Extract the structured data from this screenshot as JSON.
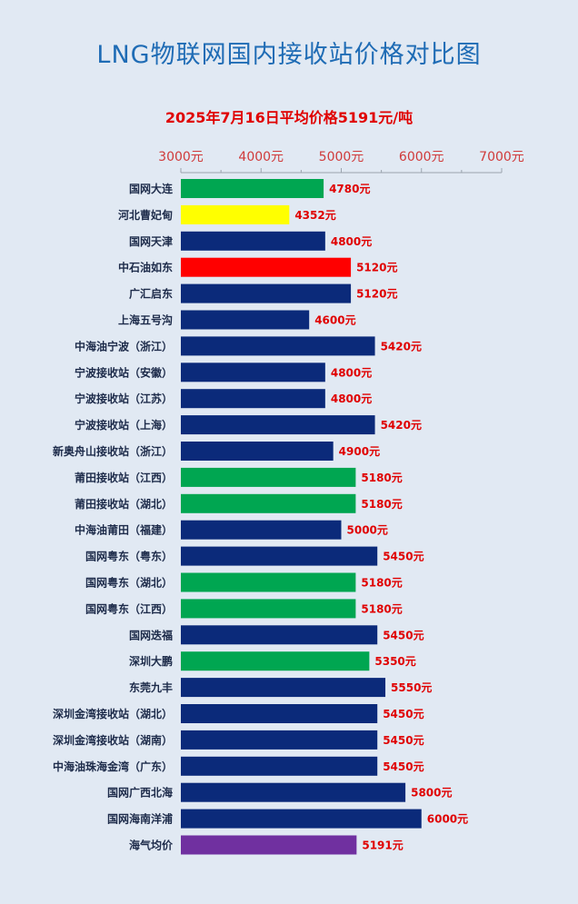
{
  "header": {
    "title": "LNG物联网国内接收站价格对比图",
    "subtitle": "2025年7月16日平均价格5191元/吨"
  },
  "colors": {
    "green": "#00a651",
    "yellow": "#ffff00",
    "navy": "#0b2a7a",
    "red": "#ff0000",
    "purple": "#7030a0",
    "value_text": "#e00000",
    "tick_text": "#d03a3a"
  },
  "chart_data": {
    "type": "bar",
    "orientation": "horizontal",
    "xlim": [
      3000,
      7000
    ],
    "xticks": [
      3000,
      4000,
      5000,
      6000,
      7000
    ],
    "xtick_labels": [
      "3000元",
      "4000元",
      "5000元",
      "6000元",
      "7000元"
    ],
    "axis_position": "top",
    "grid": false,
    "categories": [
      "国网大连",
      "河北曹妃甸",
      "国网天津",
      "中石油如东",
      "广汇启东",
      "上海五号沟",
      "中海油宁波（浙江）",
      "宁波接收站（安徽）",
      "宁波接收站（江苏）",
      "宁波接收站（上海）",
      "新奥舟山接收站（浙江）",
      "莆田接收站（江西）",
      "莆田接收站（湖北）",
      "中海油莆田（福建）",
      "国网粤东（粤东）",
      "国网粤东（湖北）",
      "国网粤东（江西）",
      "国网迭福",
      "深圳大鹏",
      "东莞九丰",
      "深圳金湾接收站（湖北）",
      "深圳金湾接收站（湖南）",
      "中海油珠海金湾（广东）",
      "国网广西北海",
      "国网海南洋浦",
      "海气均价"
    ],
    "values": [
      4780,
      4352,
      4800,
      5120,
      5120,
      4600,
      5420,
      4800,
      4800,
      5420,
      4900,
      5180,
      5180,
      5000,
      5450,
      5180,
      5180,
      5450,
      5350,
      5550,
      5450,
      5450,
      5450,
      5800,
      6000,
      5191
    ],
    "value_labels": [
      "4780元",
      "4352元",
      "4800元",
      "5120元",
      "5120元",
      "4600元",
      "5420元",
      "4800元",
      "4800元",
      "5420元",
      "4900元",
      "5180元",
      "5180元",
      "5000元",
      "5450元",
      "5180元",
      "5180元",
      "5450元",
      "5350元",
      "5550元",
      "5450元",
      "5450元",
      "5450元",
      "5800元",
      "6000元",
      "5191元"
    ],
    "bar_colors": [
      "green",
      "yellow",
      "navy",
      "red",
      "navy",
      "navy",
      "navy",
      "navy",
      "navy",
      "navy",
      "navy",
      "green",
      "green",
      "navy",
      "navy",
      "green",
      "green",
      "navy",
      "green",
      "navy",
      "navy",
      "navy",
      "navy",
      "navy",
      "navy",
      "purple"
    ]
  }
}
